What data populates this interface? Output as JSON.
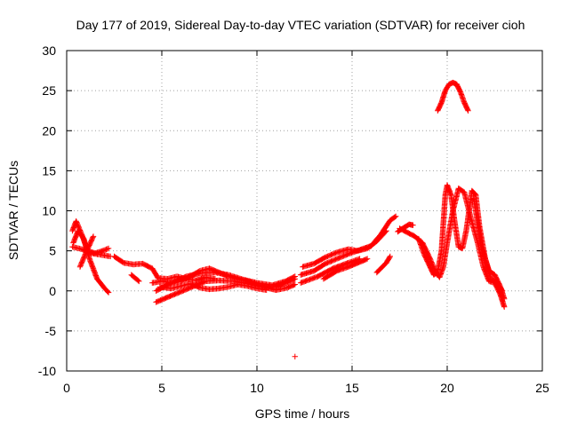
{
  "chart_data": {
    "type": "scatter",
    "title": "Day 177 of 2019, Sidereal Day-to-day VTEC variation (SDTVAR) for receiver cioh",
    "xlabel": "GPS time / hours",
    "ylabel": "SDTVAR / TECUs",
    "xlim": [
      0,
      25
    ],
    "ylim": [
      -10,
      30
    ],
    "xticks": [
      0,
      5,
      10,
      15,
      20,
      25
    ],
    "yticks": [
      -10,
      -5,
      0,
      5,
      10,
      15,
      20,
      25,
      30
    ],
    "grid": true,
    "marker": "+",
    "color": "#ff0000",
    "tracks": [
      [
        [
          0.3,
          7.5
        ],
        [
          0.5,
          8.7
        ],
        [
          0.8,
          7.0
        ],
        [
          1.1,
          5.0
        ],
        [
          1.5,
          4.7
        ],
        [
          1.9,
          5.0
        ],
        [
          2.2,
          5.3
        ]
      ],
      [
        [
          0.35,
          6.0
        ],
        [
          0.6,
          7.5
        ],
        [
          0.9,
          6.5
        ],
        [
          1.2,
          4.0
        ],
        [
          1.6,
          1.5
        ],
        [
          2.0,
          0.3
        ],
        [
          2.2,
          -0.2
        ]
      ],
      [
        [
          0.3,
          5.5
        ],
        [
          0.8,
          5.2
        ],
        [
          1.3,
          4.7
        ],
        [
          1.8,
          4.5
        ],
        [
          2.3,
          4.3
        ]
      ],
      [
        [
          0.7,
          3.0
        ],
        [
          1.0,
          4.7
        ],
        [
          1.4,
          6.8
        ]
      ],
      [
        [
          2.5,
          4.3
        ],
        [
          3.0,
          3.5
        ],
        [
          3.5,
          3.3
        ],
        [
          4.0,
          3.4
        ],
        [
          4.5,
          2.8
        ],
        [
          4.8,
          1.6
        ],
        [
          5.3,
          1.5
        ],
        [
          5.8,
          1.8
        ],
        [
          6.3,
          1.5
        ],
        [
          6.8,
          1.3
        ],
        [
          7.3,
          1.7
        ],
        [
          7.8,
          1.5
        ]
      ],
      [
        [
          3.4,
          2.0
        ],
        [
          3.8,
          1.2
        ]
      ],
      [
        [
          4.5,
          1.0
        ],
        [
          5.0,
          1.2
        ],
        [
          5.5,
          1.0
        ],
        [
          6.0,
          1.2
        ],
        [
          6.5,
          1.8
        ],
        [
          7.0,
          2.5
        ],
        [
          7.5,
          2.8
        ],
        [
          8.0,
          2.3
        ],
        [
          8.5,
          1.8
        ],
        [
          9.0,
          1.5
        ],
        [
          9.5,
          1.2
        ],
        [
          10.0,
          0.8
        ],
        [
          10.5,
          0.6
        ],
        [
          11.0,
          0.5
        ],
        [
          11.5,
          1.0
        ],
        [
          12.0,
          1.5
        ]
      ],
      [
        [
          4.7,
          0.0
        ],
        [
          5.5,
          1.0
        ],
        [
          6.3,
          1.8
        ],
        [
          7.0,
          2.2
        ],
        [
          7.8,
          2.3
        ],
        [
          8.5,
          2.0
        ],
        [
          9.3,
          1.4
        ],
        [
          10.0,
          1.0
        ],
        [
          10.8,
          0.7
        ],
        [
          11.5,
          1.2
        ],
        [
          12.0,
          1.8
        ]
      ],
      [
        [
          4.7,
          -1.4
        ],
        [
          5.5,
          -0.6
        ],
        [
          6.5,
          0.4
        ],
        [
          7.3,
          1.2
        ],
        [
          8.0,
          1.3
        ],
        [
          8.8,
          1.2
        ],
        [
          9.5,
          0.9
        ],
        [
          10.3,
          0.5
        ],
        [
          11.0,
          0.1
        ],
        [
          11.6,
          0.4
        ],
        [
          12.0,
          0.8
        ]
      ],
      [
        [
          4.9,
          0.5
        ],
        [
          5.5,
          0.3
        ],
        [
          6.0,
          0.6
        ],
        [
          6.5,
          0.9
        ],
        [
          7.0,
          0.4
        ],
        [
          7.5,
          0.2
        ],
        [
          8.0,
          0.3
        ],
        [
          8.5,
          0.5
        ],
        [
          9.0,
          0.8
        ],
        [
          9.5,
          0.6
        ],
        [
          10.0,
          0.3
        ],
        [
          10.5,
          0.1
        ]
      ],
      [
        [
          12.3,
          2.0
        ],
        [
          13.0,
          2.5
        ],
        [
          13.6,
          3.4
        ],
        [
          14.2,
          4.0
        ],
        [
          14.8,
          4.6
        ],
        [
          15.5,
          5.2
        ],
        [
          16.0,
          5.6
        ],
        [
          16.5,
          7.0
        ],
        [
          17.0,
          8.8
        ],
        [
          17.3,
          9.3
        ]
      ],
      [
        [
          12.4,
          3.0
        ],
        [
          13.0,
          3.4
        ],
        [
          13.6,
          4.2
        ],
        [
          14.2,
          4.8
        ],
        [
          14.8,
          5.2
        ],
        [
          15.3,
          5.0
        ],
        [
          15.8,
          5.3
        ],
        [
          16.3,
          6.2
        ],
        [
          16.8,
          7.5
        ]
      ],
      [
        [
          12.3,
          1.0
        ],
        [
          13.2,
          1.8
        ],
        [
          14.0,
          2.8
        ],
        [
          14.8,
          3.5
        ],
        [
          15.4,
          4.0
        ]
      ],
      [
        [
          13.5,
          1.5
        ],
        [
          14.2,
          2.5
        ],
        [
          14.8,
          3.0
        ],
        [
          15.3,
          3.5
        ],
        [
          15.8,
          4.0
        ]
      ],
      [
        [
          16.3,
          2.3
        ],
        [
          16.8,
          3.5
        ],
        [
          17.0,
          4.3
        ]
      ],
      [
        [
          17.4,
          7.4
        ],
        [
          17.8,
          8.0
        ],
        [
          18.0,
          8.3
        ],
        [
          18.2,
          8.2
        ]
      ],
      [
        [
          17.5,
          7.8
        ],
        [
          17.9,
          7.3
        ],
        [
          18.3,
          6.8
        ],
        [
          18.7,
          6.0
        ],
        [
          19.1,
          4.0
        ],
        [
          19.4,
          2.3
        ],
        [
          19.6,
          1.7
        ],
        [
          19.8,
          3.0
        ],
        [
          20.0,
          6.0
        ],
        [
          20.3,
          10.0
        ],
        [
          20.6,
          12.8
        ],
        [
          20.9,
          12.3
        ],
        [
          21.2,
          9.5
        ],
        [
          21.6,
          6.0
        ],
        [
          21.9,
          3.0
        ],
        [
          22.2,
          1.2
        ],
        [
          22.5,
          1.0
        ],
        [
          22.8,
          -0.5
        ],
        [
          23.0,
          -2.0
        ]
      ],
      [
        [
          18.5,
          6.5
        ],
        [
          18.8,
          4.5
        ],
        [
          19.1,
          3.0
        ],
        [
          19.3,
          2.0
        ],
        [
          19.5,
          2.4
        ],
        [
          19.7,
          5.0
        ],
        [
          19.8,
          8.5
        ],
        [
          19.9,
          12.0
        ],
        [
          20.0,
          13.2
        ],
        [
          20.2,
          12.0
        ],
        [
          20.4,
          8.5
        ],
        [
          20.6,
          5.5
        ],
        [
          20.8,
          5.3
        ],
        [
          21.0,
          7.5
        ],
        [
          21.3,
          12.5
        ],
        [
          21.5,
          12.0
        ],
        [
          21.7,
          8.0
        ],
        [
          22.0,
          4.0
        ],
        [
          22.3,
          1.5
        ],
        [
          22.6,
          1.0
        ],
        [
          22.9,
          0.0
        ]
      ],
      [
        [
          21.4,
          11.5
        ],
        [
          21.6,
          8.5
        ],
        [
          21.8,
          5.5
        ],
        [
          22.0,
          4.0
        ],
        [
          22.2,
          2.5
        ],
        [
          22.5,
          2.0
        ],
        [
          22.8,
          0.5
        ],
        [
          23.0,
          -1.0
        ]
      ],
      [
        [
          19.5,
          22.5
        ],
        [
          19.7,
          23.5
        ],
        [
          19.9,
          25.0
        ],
        [
          20.1,
          25.8
        ],
        [
          20.3,
          26.0
        ],
        [
          20.5,
          25.8
        ],
        [
          20.7,
          24.8
        ],
        [
          20.9,
          23.5
        ],
        [
          21.1,
          22.5
        ]
      ],
      [
        [
          12.0,
          -8.2
        ]
      ]
    ]
  }
}
